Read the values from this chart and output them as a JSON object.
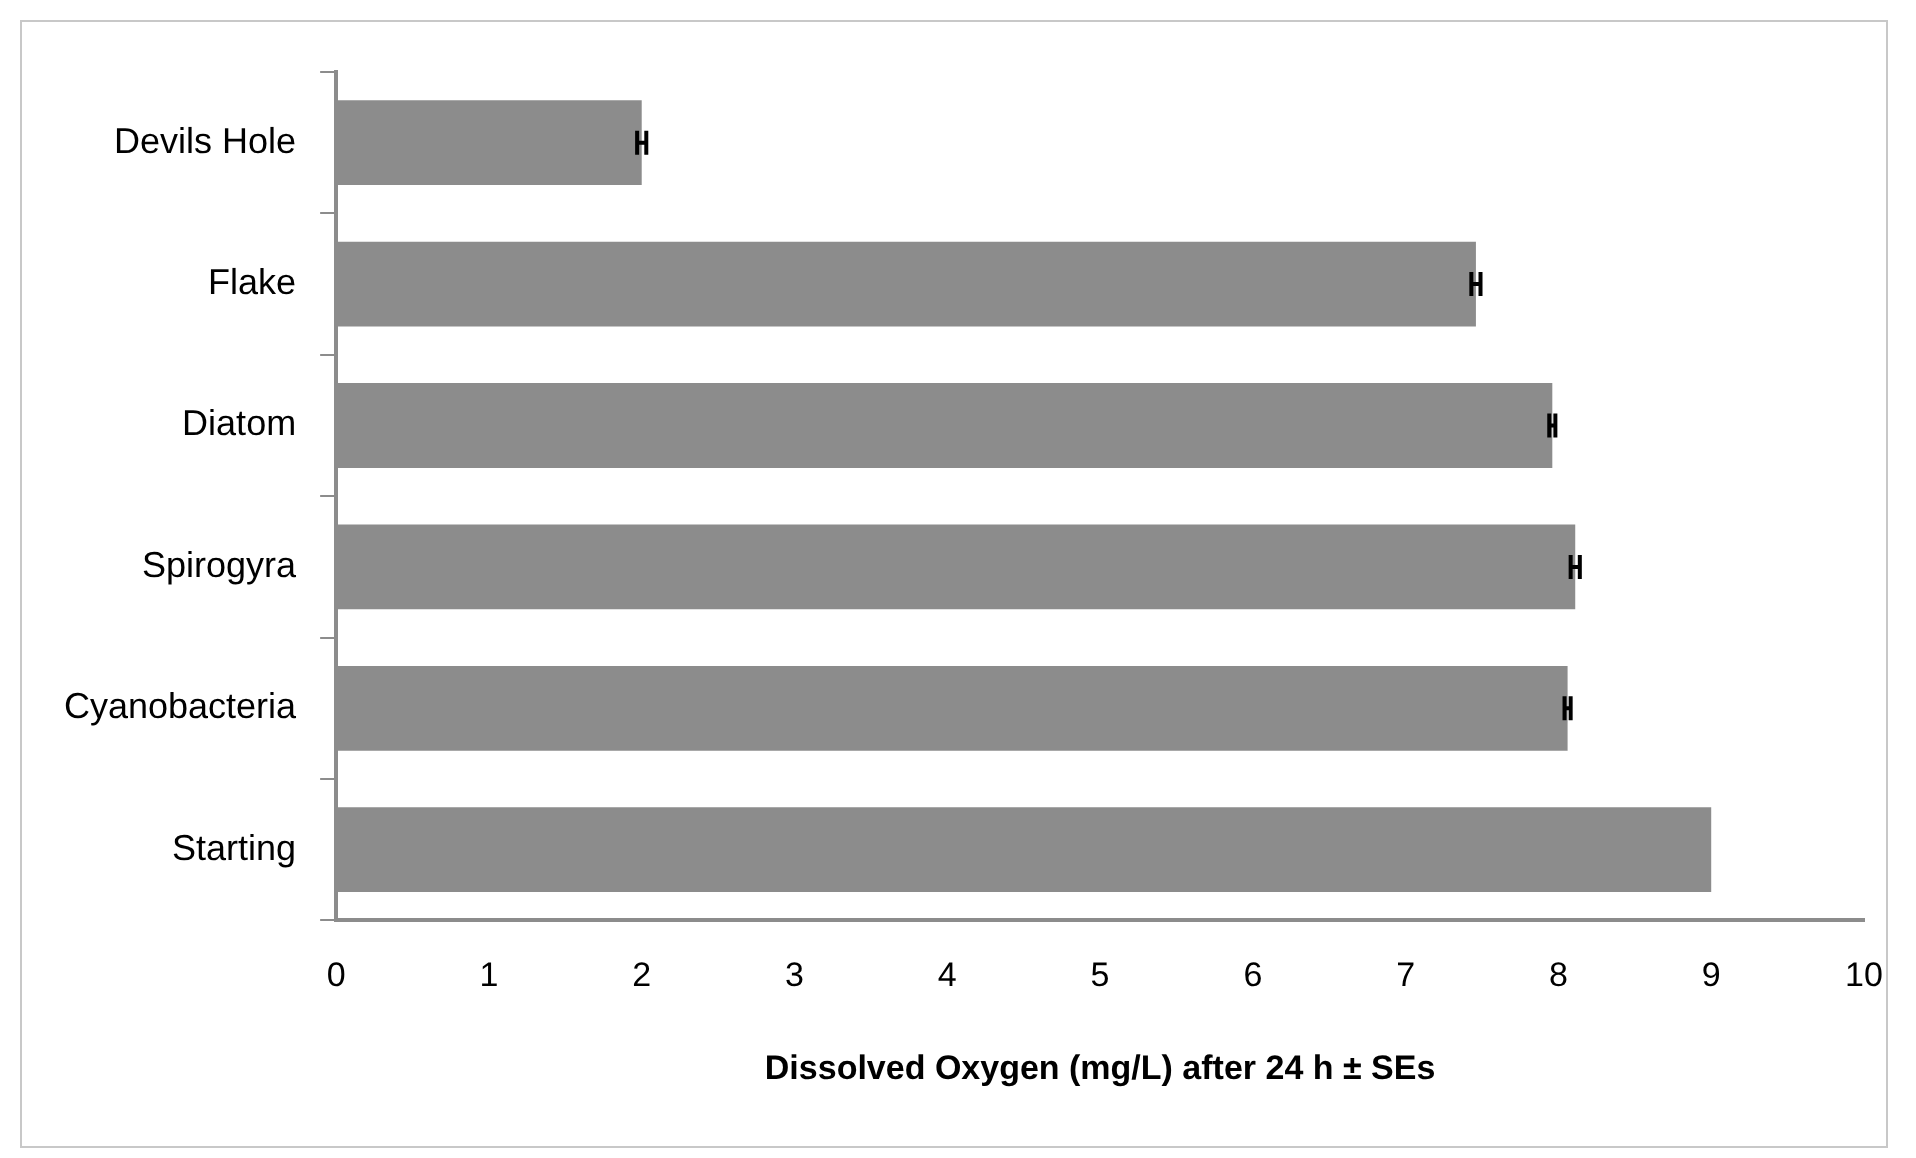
{
  "chart_data": {
    "type": "bar",
    "orientation": "horizontal",
    "xlabel": "Dissolved Oxygen (mg/L) after 24 h ± SEs",
    "categories": [
      "Devils Hole",
      "Flake",
      "Diatom",
      "Spirogyra",
      "Cyanobacteria",
      "Starting"
    ],
    "values": [
      2.0,
      7.46,
      7.96,
      8.11,
      8.06,
      9.0
    ],
    "errors": [
      0.03,
      0.03,
      0.02,
      0.03,
      0.02,
      null
    ],
    "color": "#8c8c8c",
    "xlim": [
      0,
      10
    ],
    "xticks": [
      0,
      1,
      2,
      3,
      4,
      5,
      6,
      7,
      8,
      9,
      10
    ],
    "grid": false,
    "legend": false
  }
}
